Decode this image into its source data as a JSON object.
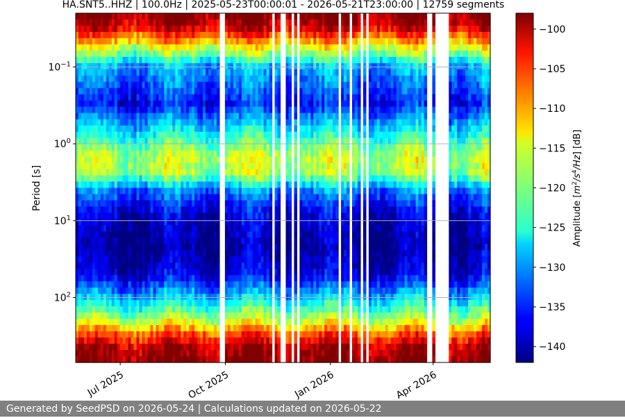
{
  "chart_data": {
    "type": "heatmap",
    "title": "HA.SNT5..HHZ | 100.0Hz | 2025-05-23T00:00:01 - 2026-05-21T23:00:00 | 12759 segments",
    "xlabel": "",
    "ylabel": "Period [s]",
    "x_range": [
      "2025-05-23",
      "2026-05-21"
    ],
    "x_ticks": [
      {
        "date": "2025-07-01",
        "label": "Jul 2025"
      },
      {
        "date": "2025-10-01",
        "label": "Oct 2025"
      },
      {
        "date": "2026-01-01",
        "label": "Jan 2026"
      },
      {
        "date": "2026-04-01",
        "label": "Apr 2026"
      }
    ],
    "y_scale": "log",
    "y_inverted": true,
    "y_range": [
      0.02,
      700
    ],
    "y_ticks": [
      {
        "value": 0.1,
        "base": "10",
        "exp": "−1"
      },
      {
        "value": 1,
        "base": "10",
        "exp": "0"
      },
      {
        "value": 10,
        "base": "10",
        "exp": "1"
      },
      {
        "value": 100,
        "base": "10",
        "exp": "2"
      }
    ],
    "grid": true,
    "colormap": "jet",
    "colorbar": {
      "label_prefix": "Amplitude [",
      "label_math": "m",
      "label_exp1": "2",
      "label_mid": "/s",
      "label_exp2": "4",
      "label_end": "/Hz] [dB]",
      "range": [
        -142,
        -98
      ],
      "ticks": [
        -100,
        -105,
        -110,
        -115,
        -120,
        -125,
        -130,
        -135,
        -140
      ]
    },
    "data_gaps": [
      [
        "2025-09-18",
        "2025-09-19"
      ],
      [
        "2025-09-26",
        "2025-10-01"
      ],
      [
        "2025-10-31",
        "2025-11-01"
      ],
      [
        "2025-11-12",
        "2025-11-13"
      ],
      [
        "2025-11-19",
        "2025-11-22"
      ],
      [
        "2025-11-25",
        "2025-11-26"
      ],
      [
        "2025-11-28",
        "2025-11-29"
      ],
      [
        "2025-12-03",
        "2025-12-04"
      ],
      [
        "2025-12-05",
        "2025-12-06"
      ],
      [
        "2026-01-09",
        "2026-01-10"
      ],
      [
        "2026-01-17",
        "2026-01-19"
      ],
      [
        "2026-01-27",
        "2026-01-30"
      ],
      [
        "2026-02-02",
        "2026-02-03"
      ],
      [
        "2026-02-22",
        "2026-02-23"
      ],
      [
        "2026-03-01",
        "2026-03-03"
      ],
      [
        "2026-03-11",
        "2026-03-12"
      ],
      [
        "2026-03-26",
        "2026-03-31"
      ],
      [
        "2026-04-02",
        "2026-04-14"
      ]
    ],
    "spectral_profile": [
      {
        "period": 0.02,
        "db": -98
      },
      {
        "period": 0.03,
        "db": -101
      },
      {
        "period": 0.06,
        "db": -117
      },
      {
        "period": 0.1,
        "db": -129
      },
      {
        "period": 0.3,
        "db": -136
      },
      {
        "period": 0.8,
        "db": -124
      },
      {
        "period": 1.5,
        "db": -117
      },
      {
        "period": 2.5,
        "db": -119
      },
      {
        "period": 4,
        "db": -131
      },
      {
        "period": 8,
        "db": -138
      },
      {
        "period": 20,
        "db": -141
      },
      {
        "period": 50,
        "db": -138
      },
      {
        "period": 100,
        "db": -128
      },
      {
        "period": 200,
        "db": -117
      },
      {
        "period": 300,
        "db": -107
      },
      {
        "period": 450,
        "db": -100
      },
      {
        "period": 700,
        "db": -98
      }
    ]
  },
  "footer": {
    "text": "Generated by SeedPSD on 2026-05-24 | Calculations updated on 2026-05-22"
  }
}
